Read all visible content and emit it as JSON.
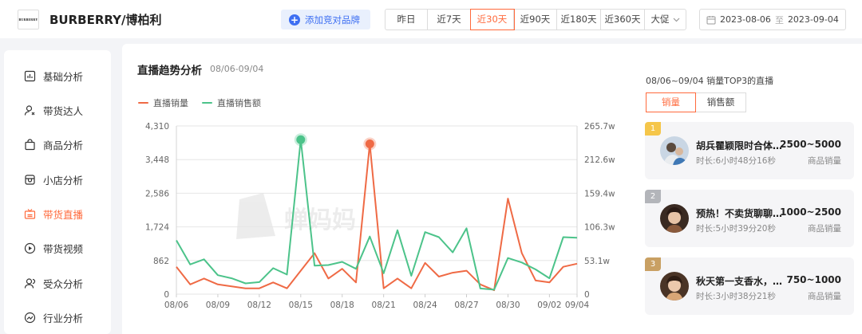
{
  "header": {
    "logo_text": "BURBERRY",
    "brand_name": "BURBERRY/博柏利",
    "add_competitor_label": "添加竞对品牌",
    "ranges": [
      {
        "label": "昨日",
        "active": false
      },
      {
        "label": "近7天",
        "active": false
      },
      {
        "label": "近30天",
        "active": true
      },
      {
        "label": "近90天",
        "active": false
      },
      {
        "label": "近180天",
        "active": false
      },
      {
        "label": "近360天",
        "active": false
      },
      {
        "label": "大促",
        "active": false
      }
    ],
    "date_start": "2023-08-06",
    "date_separator": "至",
    "date_end": "2023-09-04"
  },
  "sidebar": {
    "items": [
      {
        "label": "基础分析",
        "icon": "bar-chart-icon",
        "active": false
      },
      {
        "label": "带货达人",
        "icon": "user-icon",
        "active": false
      },
      {
        "label": "商品分析",
        "icon": "bag-icon",
        "active": false
      },
      {
        "label": "小店分析",
        "icon": "store-icon",
        "active": false
      },
      {
        "label": "带货直播",
        "icon": "live-tv-icon",
        "active": true
      },
      {
        "label": "带货视频",
        "icon": "play-icon",
        "active": false
      },
      {
        "label": "受众分析",
        "icon": "audience-icon",
        "active": false
      },
      {
        "label": "行业分析",
        "icon": "trend-icon",
        "active": false
      }
    ]
  },
  "chart_panel": {
    "title": "直播趋势分析",
    "subtitle": "08/06-09/04",
    "watermark": "蝉妈妈"
  },
  "chart_data": {
    "type": "line",
    "x": [
      "08/06",
      "08/07",
      "08/08",
      "08/09",
      "08/10",
      "08/11",
      "08/12",
      "08/13",
      "08/14",
      "08/15",
      "08/16",
      "08/17",
      "08/18",
      "08/19",
      "08/20",
      "08/21",
      "08/22",
      "08/23",
      "08/24",
      "08/25",
      "08/26",
      "08/27",
      "08/28",
      "08/29",
      "08/30",
      "08/31",
      "09/01",
      "09/02",
      "09/03",
      "09/04"
    ],
    "x_tick_labels": [
      "08/06",
      "08/09",
      "08/12",
      "08/15",
      "08/18",
      "08/21",
      "08/24",
      "08/27",
      "08/30",
      "09/02",
      "09/04"
    ],
    "y_left_ticks": [
      "0",
      "862",
      "1,724",
      "2,586",
      "3,448",
      "4,310"
    ],
    "y_right_ticks": [
      "0",
      "53.1w",
      "106.3w",
      "159.4w",
      "212.6w",
      "265.7w"
    ],
    "ylim_left": [
      0,
      4310
    ],
    "ylim_right": [
      0,
      265.7
    ],
    "grid": true,
    "legend_position": "top-left",
    "series": [
      {
        "name": "直播销量",
        "axis": "left",
        "color": "#ef6a45",
        "values": [
          700,
          250,
          400,
          250,
          200,
          150,
          150,
          300,
          150,
          600,
          1050,
          400,
          650,
          300,
          3850,
          150,
          400,
          150,
          800,
          450,
          550,
          600,
          250,
          100,
          2450,
          1050,
          350,
          300,
          700,
          780
        ]
      },
      {
        "name": "直播销售额",
        "axis": "right",
        "color": "#4cc38a",
        "values": [
          85,
          47,
          55,
          30,
          25,
          17,
          19,
          41,
          31,
          244,
          45,
          46,
          51,
          40,
          91,
          33,
          101,
          29,
          98,
          90,
          66,
          104,
          9,
          7,
          57,
          50,
          39,
          25,
          90,
          89
        ]
      }
    ],
    "highlights": [
      {
        "series": "直播销售额",
        "x": "08/15"
      },
      {
        "series": "直播销量",
        "x": "08/20"
      }
    ]
  },
  "top3": {
    "title": "08/06~09/04 销量TOP3的直播",
    "tabs": [
      {
        "label": "销量",
        "active": true
      },
      {
        "label": "销售额",
        "active": false
      }
    ],
    "items": [
      {
        "rank": "1",
        "rank_color": "#f5c64a",
        "name": "胡兵瞿颖限时合体宠粉！",
        "duration": "时长:6小时48分16秒",
        "sales": "2500~5000",
        "sales_label": "商品销量"
      },
      {
        "rank": "2",
        "rank_color": "#b3b5ba",
        "name": "预热！不卖货聊聊天哦",
        "duration": "时长:5小时39分20秒",
        "sales": "1000~2500",
        "sales_label": "商品销量"
      },
      {
        "rank": "3",
        "rank_color": "#c9a063",
        "name": "秋天第一支香水，一起来",
        "duration": "时长:3小时38分21秒",
        "sales": "750~1000",
        "sales_label": "商品销量"
      }
    ]
  }
}
